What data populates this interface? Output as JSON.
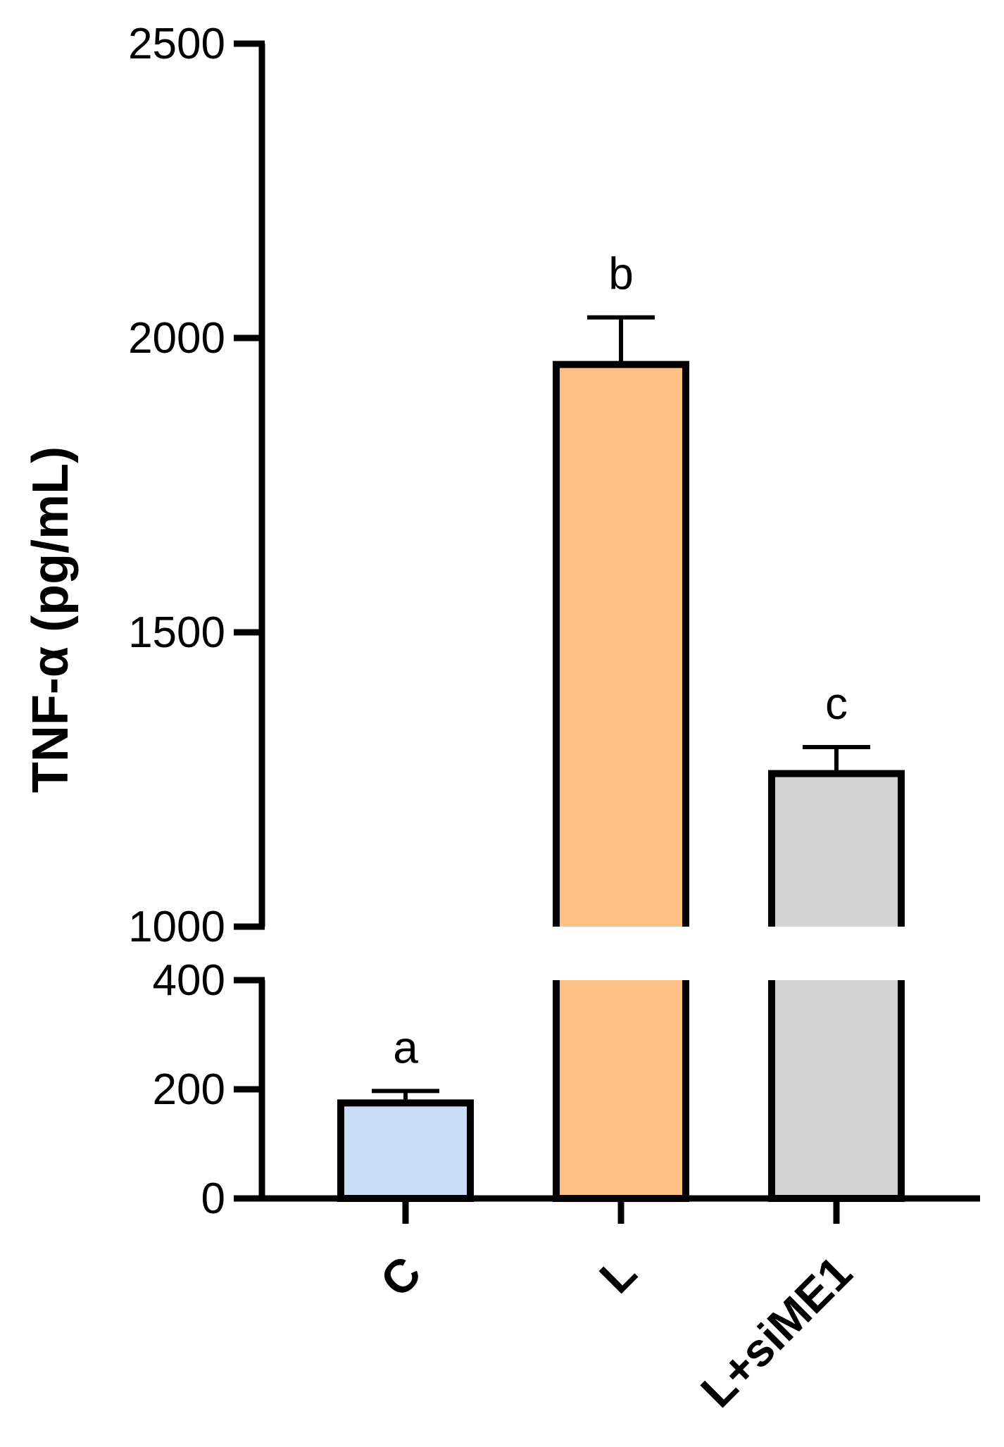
{
  "chart_data": {
    "type": "bar",
    "title": "",
    "xlabel": "",
    "ylabel": "TNF-α (pg/mL)",
    "broken_axis": true,
    "lower_segment": {
      "range": [
        0,
        400
      ],
      "ticks": [
        0,
        200,
        400
      ]
    },
    "upper_segment": {
      "range": [
        1000,
        2500
      ],
      "ticks": [
        1000,
        1500,
        2000,
        2500
      ]
    },
    "categories": [
      "C",
      "L",
      "L+siME1"
    ],
    "values": [
      175,
      1955,
      1260
    ],
    "errors": [
      22,
      80,
      45
    ],
    "significance": [
      "a",
      "b",
      "c"
    ],
    "colors": [
      "#c9ddf7",
      "#fdc085",
      "#d3d3d3"
    ],
    "grid": false,
    "legend": "none"
  }
}
